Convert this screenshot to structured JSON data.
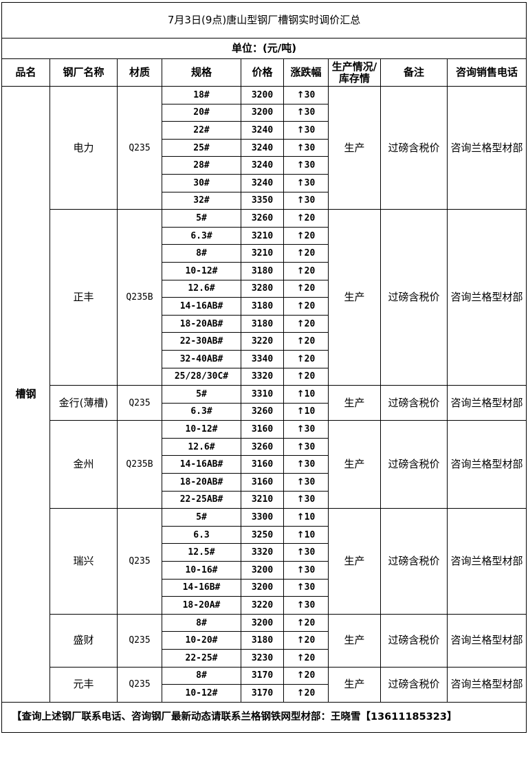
{
  "title": "7月3日(9点)唐山型钢厂槽钢实时调价汇总",
  "unit": "单位：(元/吨)",
  "headers": [
    "品名",
    "钢厂名称",
    "材质",
    "规格",
    "价格",
    "涨跌幅",
    "生产情况/库存情",
    "备注",
    "咨询销售电话"
  ],
  "product": "槽钢",
  "change_icon": "arrow-up-icon",
  "groups": [
    {
      "mill": "电力",
      "material": "Q235",
      "status": "生产",
      "note": "过磅含税价",
      "contact": "咨询兰格型材部",
      "rows": [
        {
          "spec": "18#",
          "price": "3200",
          "change": "30"
        },
        {
          "spec": "20#",
          "price": "3200",
          "change": "30"
        },
        {
          "spec": "22#",
          "price": "3240",
          "change": "30"
        },
        {
          "spec": "25#",
          "price": "3240",
          "change": "30"
        },
        {
          "spec": "28#",
          "price": "3240",
          "change": "30"
        },
        {
          "spec": "30#",
          "price": "3240",
          "change": "30"
        },
        {
          "spec": "32#",
          "price": "3350",
          "change": "30"
        }
      ]
    },
    {
      "mill": "正丰",
      "material": "Q235B",
      "status": "生产",
      "note": "过磅含税价",
      "contact": "咨询兰格型材部",
      "rows": [
        {
          "spec": "5#",
          "price": "3260",
          "change": "20"
        },
        {
          "spec": "6.3#",
          "price": "3210",
          "change": "20"
        },
        {
          "spec": "8#",
          "price": "3210",
          "change": "20"
        },
        {
          "spec": "10-12#",
          "price": "3180",
          "change": "20"
        },
        {
          "spec": "12.6#",
          "price": "3280",
          "change": "20"
        },
        {
          "spec": "14-16AB#",
          "price": "3180",
          "change": "20"
        },
        {
          "spec": "18-20AB#",
          "price": "3180",
          "change": "20"
        },
        {
          "spec": "22-30AB#",
          "price": "3220",
          "change": "20"
        },
        {
          "spec": "32-40AB#",
          "price": "3340",
          "change": "20"
        },
        {
          "spec": "25/28/30C#",
          "price": "3320",
          "change": "20"
        }
      ]
    },
    {
      "mill": "金行(薄槽)",
      "material": "Q235",
      "status": "生产",
      "note": "过磅含税价",
      "contact": "咨询兰格型材部",
      "rows": [
        {
          "spec": "5#",
          "price": "3310",
          "change": "10"
        },
        {
          "spec": "6.3#",
          "price": "3260",
          "change": "10"
        }
      ]
    },
    {
      "mill": "金州",
      "material": "Q235B",
      "status": "生产",
      "note": "过磅含税价",
      "contact": "咨询兰格型材部",
      "rows": [
        {
          "spec": "10-12#",
          "price": "3160",
          "change": "30"
        },
        {
          "spec": "12.6#",
          "price": "3260",
          "change": "30"
        },
        {
          "spec": "14-16AB#",
          "price": "3160",
          "change": "30"
        },
        {
          "spec": "18-20AB#",
          "price": "3160",
          "change": "30"
        },
        {
          "spec": "22-25AB#",
          "price": "3210",
          "change": "30"
        }
      ]
    },
    {
      "mill": "瑞兴",
      "material": "Q235",
      "status": "生产",
      "note": "过磅含税价",
      "contact": "咨询兰格型材部",
      "rows": [
        {
          "spec": "5#",
          "price": "3300",
          "change": "10"
        },
        {
          "spec": "6.3",
          "price": "3250",
          "change": "10"
        },
        {
          "spec": "12.5#",
          "price": "3320",
          "change": "30"
        },
        {
          "spec": "10-16#",
          "price": "3200",
          "change": "30"
        },
        {
          "spec": "14-16B#",
          "price": "3200",
          "change": "30"
        },
        {
          "spec": "18-20A#",
          "price": "3220",
          "change": "30"
        }
      ]
    },
    {
      "mill": "盛财",
      "material": "Q235",
      "status": "生产",
      "note": "过磅含税价",
      "contact": "咨询兰格型材部",
      "rows": [
        {
          "spec": "8#",
          "price": "3200",
          "change": "20"
        },
        {
          "spec": "10-20#",
          "price": "3180",
          "change": "20"
        },
        {
          "spec": "22-25#",
          "price": "3230",
          "change": "20"
        }
      ]
    },
    {
      "mill": "元丰",
      "material": "Q235",
      "status": "生产",
      "note": "过磅含税价",
      "contact": "咨询兰格型材部",
      "rows": [
        {
          "spec": "8#",
          "price": "3170",
          "change": "20"
        },
        {
          "spec": "10-12#",
          "price": "3170",
          "change": "20"
        }
      ]
    }
  ],
  "footer": "【查询上述钢厂联系电话、咨询钢厂最新动态请联系兰格钢铁网型材部：王晓雪【13611185323】"
}
